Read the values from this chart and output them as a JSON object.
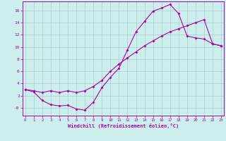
{
  "line_color": "#aa00aa",
  "bg_color": "#cceeed",
  "grid_color": "#aacccc",
  "xlim": [
    -0.3,
    23.3
  ],
  "ylim": [
    -1.3,
    17.5
  ],
  "xticks": [
    0,
    1,
    2,
    3,
    4,
    5,
    6,
    7,
    8,
    9,
    10,
    11,
    12,
    13,
    14,
    15,
    16,
    17,
    18,
    19,
    20,
    21,
    22,
    23
  ],
  "yticks": [
    0,
    2,
    4,
    6,
    8,
    10,
    12,
    14,
    16
  ],
  "ytick_labels": [
    "-0",
    "2",
    "4",
    "6",
    "8",
    "10",
    "12",
    "14",
    "16"
  ],
  "xlabel": "Windchill (Refroidissement éolien,°C)",
  "line1_x": [
    0,
    1,
    2,
    3,
    4,
    5,
    6,
    7,
    8,
    9,
    10,
    11,
    12,
    13,
    14,
    15,
    16,
    17,
    18,
    19,
    20,
    21,
    22,
    23
  ],
  "line1_y": [
    3,
    2.6,
    1.2,
    0.5,
    0.3,
    0.4,
    -0.2,
    -0.4,
    0.9,
    3.3,
    5.0,
    6.5,
    9.5,
    12.5,
    14.2,
    15.9,
    16.4,
    17.0,
    15.5,
    11.8,
    11.5,
    11.3,
    10.5,
    10.2
  ],
  "line2_x": [
    0,
    1,
    2,
    3,
    4,
    5,
    6,
    7,
    8,
    9,
    10,
    11,
    12,
    13,
    14,
    15,
    16,
    17,
    18,
    19,
    20,
    21,
    22,
    23
  ],
  "line2_y": [
    3,
    2.8,
    2.5,
    2.8,
    2.5,
    2.8,
    2.5,
    2.8,
    3.5,
    4.5,
    6.0,
    7.2,
    8.2,
    9.2,
    10.2,
    11.0,
    11.8,
    12.5,
    13.0,
    13.5,
    14.0,
    14.5,
    10.5,
    10.2
  ]
}
